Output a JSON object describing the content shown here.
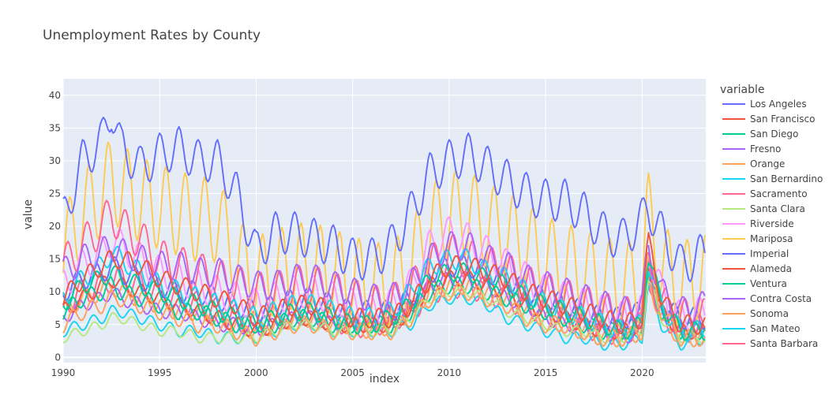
{
  "chart_data": {
    "type": "line",
    "title": "Unemployment Rates by County",
    "xlabel": "index",
    "ylabel": "value",
    "xlim": [
      1990,
      2023.3
    ],
    "ylim": [
      -0.8,
      42.5
    ],
    "x_ticks": [
      1990,
      1995,
      2000,
      2005,
      2010,
      2015,
      2020
    ],
    "y_ticks": [
      0,
      5,
      10,
      15,
      20,
      25,
      30,
      35,
      40
    ],
    "grid": true,
    "legend_title": "variable",
    "legend_position": "right",
    "x_anchor_years": [
      1990,
      1991,
      1992,
      1992.5,
      1993,
      1994,
      1995,
      1996,
      1997,
      1998,
      1999,
      2000,
      2001,
      2002,
      2003,
      2004,
      2005,
      2006,
      2007,
      2008,
      2009,
      2010,
      2011,
      2012,
      2013,
      2014,
      2015,
      2016,
      2017,
      2018,
      2019,
      2020,
      2020.3,
      2021,
      2022,
      2023.3
    ],
    "series": [
      {
        "name": "Los Angeles",
        "color": "#636efa",
        "annual_amplitude": 3.2,
        "anchors": [
          21,
          30,
          33,
          38,
          32,
          29,
          31,
          32,
          30,
          30,
          25,
          16,
          19,
          19,
          18,
          17,
          15,
          15,
          17,
          22,
          28,
          30,
          31,
          29,
          27,
          25,
          24,
          24,
          22,
          19,
          18,
          21,
          23,
          19,
          14,
          16
        ]
      },
      {
        "name": "San Francisco",
        "color": "#ef553b",
        "annual_amplitude": 1.5,
        "anchors": [
          9,
          12,
          14,
          15,
          15,
          14,
          12,
          11,
          10,
          9,
          8,
          6,
          7,
          8,
          8,
          7,
          6,
          6,
          6,
          8,
          12,
          14,
          14,
          13,
          12,
          10,
          9,
          8,
          7,
          6,
          5,
          6,
          18,
          9,
          5,
          5
        ]
      },
      {
        "name": "San Diego",
        "color": "#00cc96",
        "annual_amplitude": 1.4,
        "anchors": [
          8,
          11,
          12,
          13,
          12,
          11,
          10,
          9,
          8,
          7,
          6,
          5,
          6,
          7,
          7,
          6,
          5,
          5,
          6,
          8,
          12,
          13,
          13,
          12,
          11,
          9,
          8,
          7,
          6,
          5,
          4,
          5,
          16,
          8,
          4,
          4
        ]
      },
      {
        "name": "Fresno",
        "color": "#ab63fa",
        "annual_amplitude": 2.2,
        "anchors": [
          13,
          15,
          16,
          17,
          16,
          15,
          14,
          14,
          13,
          13,
          12,
          11,
          11,
          12,
          12,
          11,
          10,
          9,
          9,
          11,
          15,
          17,
          17,
          15,
          14,
          12,
          11,
          10,
          9,
          8,
          7,
          8,
          17,
          10,
          7,
          8
        ]
      },
      {
        "name": "Orange",
        "color": "#ffa15a",
        "annual_amplitude": 1.3,
        "anchors": [
          5,
          7,
          8,
          9,
          9,
          8,
          7,
          6,
          5,
          5,
          4,
          3,
          4,
          5,
          5,
          4,
          4,
          4,
          4,
          6,
          9,
          10,
          10,
          9,
          8,
          6,
          5,
          5,
          4,
          3,
          3,
          4,
          15,
          7,
          3,
          3
        ]
      },
      {
        "name": "San Bernardino",
        "color": "#19d3f3",
        "annual_amplitude": 1.6,
        "anchors": [
          9,
          12,
          14,
          16,
          15,
          13,
          11,
          10,
          9,
          8,
          7,
          6,
          7,
          8,
          8,
          7,
          6,
          6,
          7,
          10,
          14,
          15,
          15,
          13,
          12,
          10,
          8,
          7,
          6,
          5,
          4,
          5,
          15,
          8,
          4,
          4
        ]
      },
      {
        "name": "Sacramento",
        "color": "#ff6692",
        "annual_amplitude": 3.0,
        "anchors": [
          14,
          17,
          20,
          22,
          20,
          18,
          15,
          14,
          13,
          12,
          11,
          10,
          10,
          11,
          11,
          10,
          9,
          8,
          8,
          10,
          14,
          16,
          15,
          14,
          13,
          11,
          10,
          9,
          8,
          7,
          6,
          7,
          14,
          8,
          6,
          6
        ]
      },
      {
        "name": "Santa Clara",
        "color": "#b6e880",
        "annual_amplitude": 0.8,
        "anchors": [
          3,
          4,
          5,
          6,
          6,
          5,
          4,
          4,
          3,
          3,
          3,
          3,
          4,
          5,
          5,
          4,
          4,
          4,
          4,
          6,
          9,
          10,
          10,
          9,
          7,
          6,
          5,
          4,
          4,
          3,
          3,
          4,
          12,
          6,
          3,
          3
        ]
      },
      {
        "name": "Riverside",
        "color": "#ff97ff",
        "annual_amplitude": 2.5,
        "anchors": [
          11,
          14,
          16,
          18,
          17,
          15,
          13,
          12,
          11,
          10,
          9,
          8,
          9,
          10,
          10,
          9,
          8,
          7,
          8,
          11,
          17,
          19,
          18,
          16,
          14,
          12,
          10,
          9,
          8,
          7,
          6,
          7,
          17,
          10,
          6,
          7
        ]
      },
      {
        "name": "Mariposa",
        "color": "#fecb52",
        "annual_amplitude": 6.5,
        "anchors": [
          16,
          22,
          25,
          27,
          26,
          24,
          23,
          22,
          21,
          21,
          15,
          12,
          13,
          14,
          14,
          13,
          12,
          11,
          11,
          14,
          20,
          22,
          22,
          20,
          19,
          17,
          15,
          14,
          13,
          12,
          11,
          12,
          22,
          14,
          11,
          13
        ]
      },
      {
        "name": "Imperial",
        "color": "#636efa",
        "annual_amplitude": 1.7,
        "anchors": [
          10,
          12,
          13,
          14,
          13,
          12,
          11,
          10,
          10,
          9,
          8,
          7,
          8,
          9,
          9,
          8,
          7,
          7,
          7,
          9,
          13,
          14,
          14,
          13,
          12,
          10,
          9,
          8,
          7,
          6,
          6,
          7,
          13,
          8,
          6,
          6
        ]
      },
      {
        "name": "Alameda",
        "color": "#ef553b",
        "annual_amplitude": 1.2,
        "anchors": [
          7,
          9,
          11,
          12,
          11,
          10,
          9,
          8,
          7,
          6,
          5,
          4,
          5,
          6,
          6,
          5,
          5,
          5,
          5,
          7,
          11,
          12,
          12,
          11,
          10,
          8,
          7,
          6,
          5,
          4,
          4,
          5,
          14,
          7,
          4,
          4
        ]
      },
      {
        "name": "Ventura",
        "color": "#00cc96",
        "annual_amplitude": 1.3,
        "anchors": [
          7,
          9,
          10,
          11,
          10,
          9,
          8,
          7,
          7,
          6,
          5,
          5,
          5,
          6,
          6,
          5,
          5,
          5,
          5,
          7,
          10,
          11,
          11,
          10,
          9,
          8,
          7,
          6,
          5,
          4,
          4,
          5,
          12,
          7,
          4,
          4
        ]
      },
      {
        "name": "Contra Costa",
        "color": "#ab63fa",
        "annual_amplitude": 1.1,
        "anchors": [
          6,
          8,
          9,
          10,
          9,
          8,
          7,
          7,
          6,
          5,
          5,
          4,
          5,
          6,
          6,
          5,
          5,
          5,
          5,
          7,
          11,
          12,
          12,
          11,
          9,
          8,
          6,
          5,
          5,
          4,
          3,
          4,
          13,
          7,
          4,
          4
        ]
      },
      {
        "name": "Sonoma",
        "color": "#ffa15a",
        "annual_amplitude": 1.4,
        "anchors": [
          7,
          9,
          10,
          11,
          10,
          9,
          8,
          7,
          7,
          6,
          5,
          4,
          5,
          6,
          6,
          5,
          5,
          4,
          5,
          7,
          10,
          11,
          11,
          10,
          9,
          7,
          6,
          5,
          4,
          3,
          3,
          4,
          12,
          6,
          3,
          3
        ]
      },
      {
        "name": "San Mateo",
        "color": "#19d3f3",
        "annual_amplitude": 0.9,
        "anchors": [
          4,
          5,
          6,
          7,
          7,
          6,
          5,
          4,
          4,
          3,
          3,
          3,
          4,
          5,
          5,
          4,
          4,
          4,
          4,
          5,
          8,
          9,
          9,
          8,
          6,
          5,
          4,
          3,
          3,
          2,
          2,
          3,
          11,
          5,
          2,
          3
        ]
      },
      {
        "name": "Santa Barbara",
        "color": "#ff6692",
        "annual_amplitude": 2.0,
        "anchors": [
          8,
          10,
          11,
          12,
          12,
          11,
          10,
          9,
          8,
          7,
          6,
          5,
          6,
          7,
          7,
          6,
          5,
          5,
          6,
          7,
          10,
          11,
          11,
          10,
          9,
          8,
          7,
          6,
          5,
          4,
          4,
          5,
          13,
          7,
          4,
          5
        ]
      }
    ]
  }
}
